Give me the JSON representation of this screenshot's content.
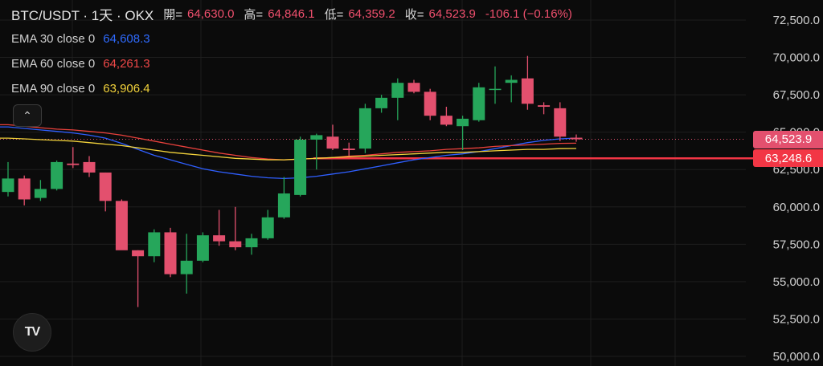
{
  "header": {
    "symbol": "BTC/USDT · 1天 · OKX",
    "open_label": "開=",
    "open": "64,630.0",
    "high_label": "高=",
    "high": "64,846.1",
    "low_label": "低=",
    "low": "64,359.2",
    "close_label": "收=",
    "close": "64,523.9",
    "change": "-106.1 (−0.16%)"
  },
  "indicators": [
    {
      "label": "EMA 30 close 0",
      "value": "64,608.3",
      "color": "#2f5fff"
    },
    {
      "label": "EMA 60 close 0",
      "value": "64,261.3",
      "color": "#e8413c"
    },
    {
      "label": "EMA 90 close 0",
      "value": "63,906.4",
      "color": "#f2d23b"
    }
  ],
  "collapse_icon": "chevron-up-icon",
  "logo": {
    "text": "TV",
    "icon": "tradingview-logo-icon"
  },
  "price_tags": {
    "last": {
      "text": "64,523.9",
      "value": 64523.9,
      "color": "#e3506e"
    },
    "line": {
      "text": "63,248.6",
      "value": 63248.6,
      "color": "#f23645"
    }
  },
  "colors": {
    "up": "#26a65b",
    "down": "#e3506e",
    "grid": "#1e1e1e",
    "axis_text": "#d0d0d0"
  },
  "chart_data": {
    "type": "candlestick",
    "ylim": [
      50000,
      72500
    ],
    "y_ticks": [
      {
        "value": 50000,
        "label": "50,000.0"
      },
      {
        "value": 52500,
        "label": "52,500.0"
      },
      {
        "value": 55000,
        "label": "55,000.0"
      },
      {
        "value": 57500,
        "label": "57,500.0"
      },
      {
        "value": 60000,
        "label": "60,000.0"
      },
      {
        "value": 62500,
        "label": "62,500.0"
      },
      {
        "value": 65000,
        "label": "65,000.0"
      },
      {
        "value": 67500,
        "label": "67,500.0"
      },
      {
        "value": 70000,
        "label": "70,000.0"
      },
      {
        "value": 72500,
        "label": "72,500.0"
      }
    ],
    "horizontal_line": 63248.6,
    "candles": [
      {
        "o": 61000,
        "h": 63000,
        "l": 60700,
        "c": 61900
      },
      {
        "o": 61900,
        "h": 62100,
        "l": 60100,
        "c": 60500
      },
      {
        "o": 60600,
        "h": 61800,
        "l": 60400,
        "c": 61200
      },
      {
        "o": 61200,
        "h": 63100,
        "l": 61100,
        "c": 63000
      },
      {
        "o": 62900,
        "h": 64000,
        "l": 62600,
        "c": 62800
      },
      {
        "o": 63000,
        "h": 63400,
        "l": 62000,
        "c": 62300
      },
      {
        "o": 62300,
        "h": 62300,
        "l": 59700,
        "c": 60400
      },
      {
        "o": 60400,
        "h": 60500,
        "l": 57300,
        "c": 57100
      },
      {
        "o": 57100,
        "h": 57100,
        "l": 53300,
        "c": 56700
      },
      {
        "o": 56700,
        "h": 58500,
        "l": 56300,
        "c": 58300
      },
      {
        "o": 58300,
        "h": 58600,
        "l": 55300,
        "c": 55500
      },
      {
        "o": 55500,
        "h": 58200,
        "l": 54200,
        "c": 56400
      },
      {
        "o": 56400,
        "h": 58300,
        "l": 56300,
        "c": 58100
      },
      {
        "o": 58100,
        "h": 59800,
        "l": 57400,
        "c": 57700
      },
      {
        "o": 57700,
        "h": 60000,
        "l": 57100,
        "c": 57300
      },
      {
        "o": 57300,
        "h": 58200,
        "l": 56800,
        "c": 57900
      },
      {
        "o": 57900,
        "h": 59800,
        "l": 57800,
        "c": 59300
      },
      {
        "o": 59300,
        "h": 62000,
        "l": 59200,
        "c": 60900
      },
      {
        "o": 60800,
        "h": 64700,
        "l": 60700,
        "c": 64500
      },
      {
        "o": 64500,
        "h": 64900,
        "l": 62500,
        "c": 64800
      },
      {
        "o": 64700,
        "h": 65500,
        "l": 63800,
        "c": 63900
      },
      {
        "o": 63900,
        "h": 64300,
        "l": 63400,
        "c": 63800
      },
      {
        "o": 63900,
        "h": 66900,
        "l": 63600,
        "c": 66600
      },
      {
        "o": 66600,
        "h": 67500,
        "l": 66300,
        "c": 67300
      },
      {
        "o": 67300,
        "h": 68600,
        "l": 65800,
        "c": 68300
      },
      {
        "o": 68300,
        "h": 68500,
        "l": 67600,
        "c": 67700
      },
      {
        "o": 67700,
        "h": 67900,
        "l": 65800,
        "c": 66100
      },
      {
        "o": 66100,
        "h": 66700,
        "l": 65400,
        "c": 65500
      },
      {
        "o": 65400,
        "h": 66100,
        "l": 63800,
        "c": 65900
      },
      {
        "o": 65800,
        "h": 68300,
        "l": 65700,
        "c": 68000
      },
      {
        "o": 67900,
        "h": 69400,
        "l": 66900,
        "c": 67900
      },
      {
        "o": 68300,
        "h": 68800,
        "l": 67000,
        "c": 68500
      },
      {
        "o": 68600,
        "h": 70100,
        "l": 66500,
        "c": 66900
      },
      {
        "o": 66800,
        "h": 67000,
        "l": 66200,
        "c": 66700
      },
      {
        "o": 66600,
        "h": 67000,
        "l": 64400,
        "c": 64700
      },
      {
        "o": 64630,
        "h": 64846.1,
        "l": 64359.2,
        "c": 64523.9
      }
    ],
    "ema_series": [
      {
        "name": "EMA 30 close 0",
        "color": "#2f5fff",
        "values": [
          65350,
          65250,
          65150,
          65050,
          64950,
          64800,
          64600,
          64250,
          63850,
          63450,
          63150,
          62850,
          62550,
          62350,
          62200,
          62050,
          61950,
          61900,
          61950,
          62050,
          62200,
          62350,
          62550,
          62750,
          62950,
          63150,
          63300,
          63450,
          63550,
          63700,
          63900,
          64100,
          64300,
          64450,
          64550,
          64608.3
        ]
      },
      {
        "name": "EMA 60 close 0",
        "color": "#e8413c",
        "values": [
          65500,
          65400,
          65300,
          65200,
          65150,
          65050,
          64950,
          64800,
          64600,
          64400,
          64200,
          64000,
          63800,
          63600,
          63450,
          63300,
          63200,
          63150,
          63200,
          63250,
          63300,
          63400,
          63450,
          63550,
          63650,
          63700,
          63750,
          63850,
          63900,
          63950,
          64050,
          64100,
          64150,
          64200,
          64250,
          64261.3
        ]
      },
      {
        "name": "EMA 90 close 0",
        "color": "#f2d23b",
        "values": [
          64600,
          64550,
          64500,
          64450,
          64400,
          64300,
          64200,
          64100,
          63950,
          63800,
          63650,
          63550,
          63450,
          63350,
          63250,
          63200,
          63150,
          63150,
          63200,
          63250,
          63300,
          63350,
          63400,
          63450,
          63500,
          63550,
          63600,
          63650,
          63650,
          63700,
          63750,
          63800,
          63850,
          63850,
          63900,
          63906.4
        ]
      }
    ]
  }
}
